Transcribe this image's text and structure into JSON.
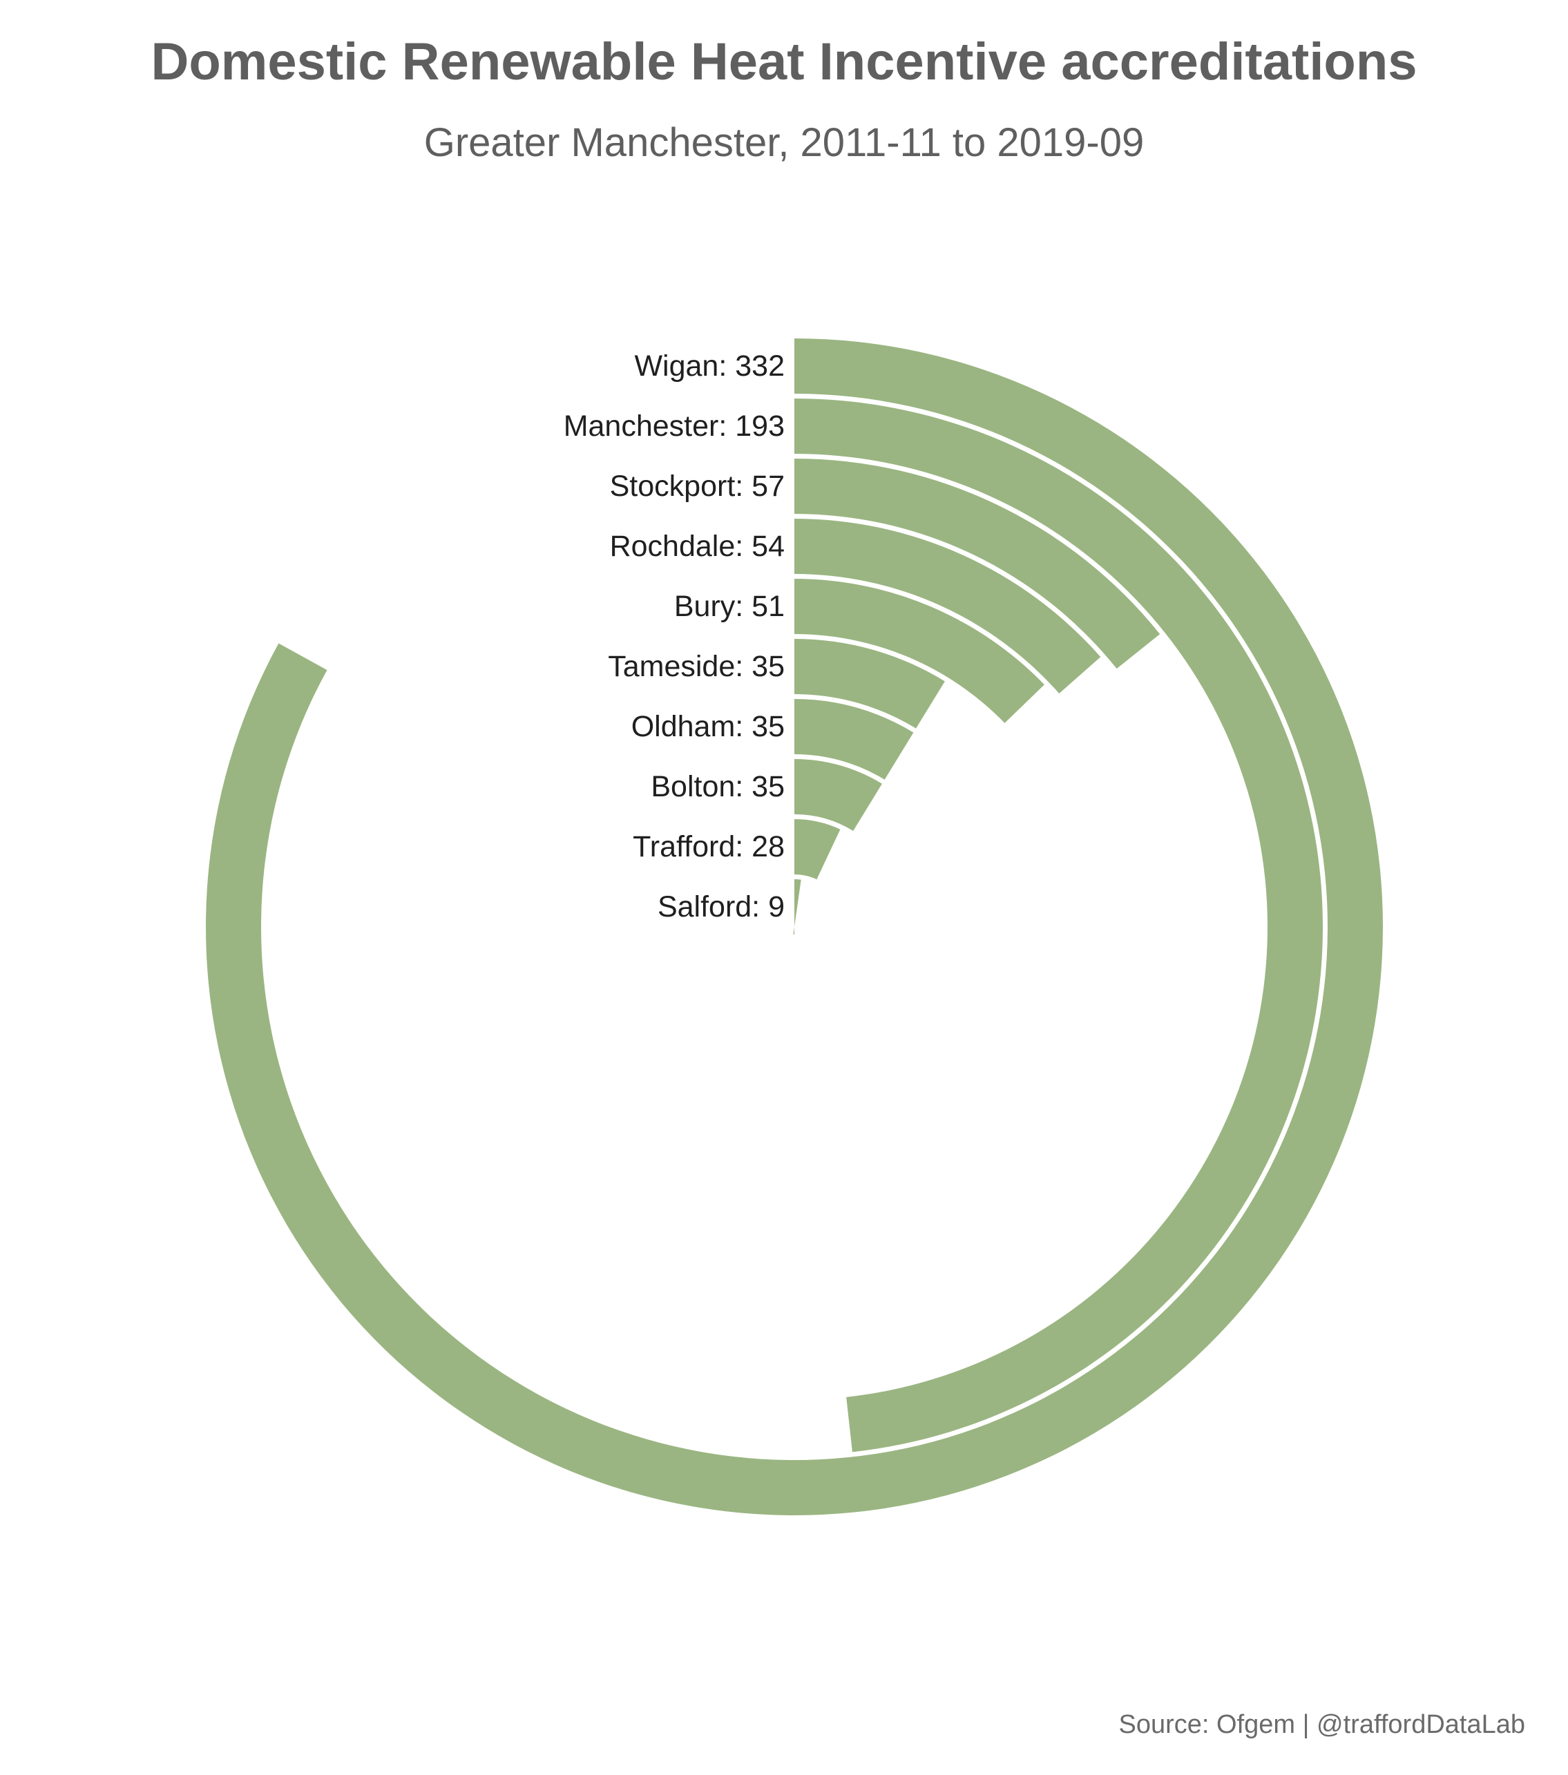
{
  "chart_data": {
    "type": "bar",
    "layout": "radial",
    "title": "Domestic Renewable Heat Incentive accreditations",
    "subtitle": "Greater Manchester, 2011-11 to 2019-09",
    "caption": "Source: Ofgem | @traffordDataLab",
    "bar_color": "#9ab581",
    "categories": [
      "Wigan",
      "Manchester",
      "Stockport",
      "Rochdale",
      "Bury",
      "Tameside",
      "Oldham",
      "Bolton",
      "Trafford",
      "Salford"
    ],
    "values": [
      332,
      193,
      57,
      54,
      51,
      35,
      35,
      35,
      28,
      9
    ],
    "labels": [
      "Wigan: 332",
      "Manchester: 193",
      "Stockport: 57",
      "Rochdale: 54",
      "Bury: 51",
      "Tameside: 35",
      "Oldham: 35",
      "Bolton: 35",
      "Trafford: 28",
      "Salford: 9"
    ],
    "xlabel": "",
    "ylabel": "",
    "grid": false,
    "legend": "none"
  }
}
